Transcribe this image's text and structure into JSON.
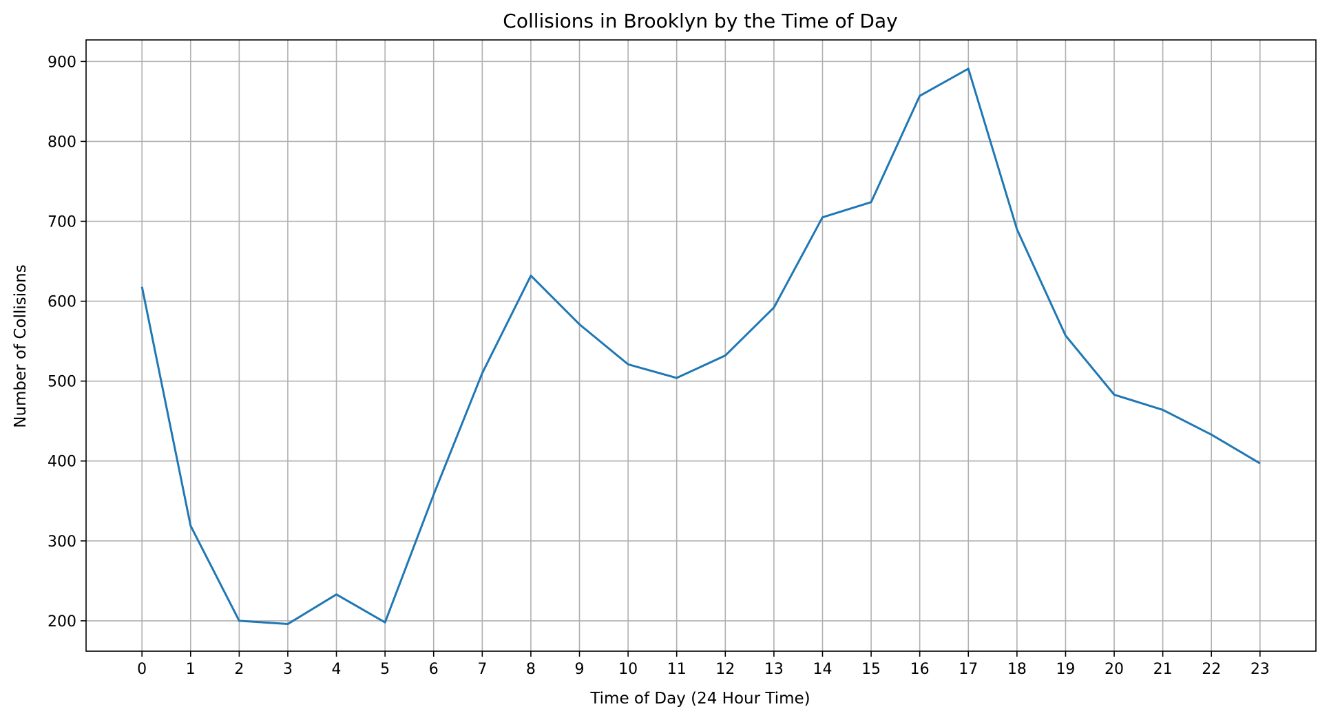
{
  "chart_data": {
    "type": "line",
    "title": "Collisions in Brooklyn by the Time of Day",
    "xlabel": "Time of Day (24 Hour Time)",
    "ylabel": "Number of Collisions",
    "x": [
      0,
      1,
      2,
      3,
      4,
      5,
      6,
      7,
      8,
      9,
      10,
      11,
      12,
      13,
      14,
      15,
      16,
      17,
      18,
      19,
      20,
      21,
      22,
      23
    ],
    "series": [
      {
        "values": [
          618,
          319,
          200,
          196,
          233,
          198,
          358,
          510,
          632,
          571,
          521,
          504,
          532,
          592,
          705,
          724,
          857,
          891,
          690,
          557,
          483,
          464,
          433,
          397
        ],
        "color": "#1f77b4"
      }
    ],
    "xlim": [
      -1.15,
      24.15
    ],
    "ylim": [
      162,
      927
    ],
    "xticks": [
      0,
      1,
      2,
      3,
      4,
      5,
      6,
      7,
      8,
      9,
      10,
      11,
      12,
      13,
      14,
      15,
      16,
      17,
      18,
      19,
      20,
      21,
      22,
      23
    ],
    "yticks": [
      200,
      300,
      400,
      500,
      600,
      700,
      800,
      900
    ],
    "grid": true,
    "legend": "none"
  }
}
